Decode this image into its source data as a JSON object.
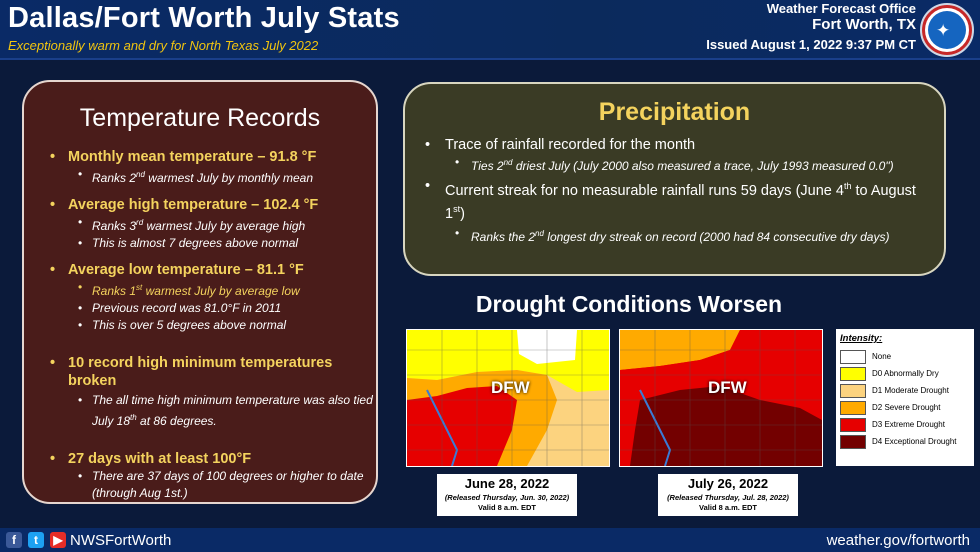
{
  "header": {
    "title": "Dallas/Fort Worth July Stats",
    "subtitle": "Exceptionally warm and dry for North Texas July 2022",
    "office_line1": "Weather Forecast Office",
    "office_line2": "Fort Worth, TX",
    "issued": "Issued August 1, 2022 9:37 PM CT",
    "logo_icon": "noaa-nws-logo-icon"
  },
  "temperature": {
    "heading": "Temperature Records",
    "mean_head": "Monthly mean temperature – 91.8 °F",
    "mean_sub1": "Ranks 2nd warmest July by monthly mean",
    "high_head": "Average high temperature – 102.4 °F",
    "high_sub1": "Ranks 3rd warmest July by average high",
    "high_sub2": "This is almost 7 degrees above normal",
    "low_head": "Average low temperature – 81.1 °F",
    "low_sub1": "Ranks 1st warmest July by average low",
    "low_sub2": "Previous record was 81.0°F in 2011",
    "low_sub3": "This is over 5 degrees above normal",
    "records_head": "10 record high minimum temperatures broken",
    "records_sub1": "The all time high minimum temperature was also tied July 18th at 86 degrees.",
    "days_head": "27 days with at least 100°F",
    "days_sub1": "There are 37 days of 100 degrees or higher to date (through Aug 1st.)"
  },
  "precipitation": {
    "heading": "Precipitation",
    "item1": "Trace of rainfall recorded for the month",
    "item1_sub": "Ties 2nd driest July (July 2000 also measured a trace, July 1993 measured 0.0\")",
    "item2": "Current streak for no measurable rainfall runs 59 days (June 4th to August 1st)",
    "item2_sub": "Ranks the 2nd longest dry streak on record (2000 had 84 consecutive dry days)"
  },
  "drought": {
    "heading": "Drought Conditions Worsen",
    "map_label": "DFW",
    "map1_date": "June 28, 2022",
    "map1_released": "(Released Thursday, Jun. 30, 2022)",
    "map1_valid": "Valid 8 a.m. EDT",
    "map2_date": "July 26, 2022",
    "map2_released": "(Released Thursday, Jul. 28, 2022)",
    "map2_valid": "Valid 8 a.m. EDT",
    "legend_title": "Intensity:",
    "legend": [
      {
        "label": "None",
        "color": "#ffffff"
      },
      {
        "label": "D0 Abnormally Dry",
        "color": "#ffff00"
      },
      {
        "label": "D1 Moderate Drought",
        "color": "#fcd37f"
      },
      {
        "label": "D2 Severe Drought",
        "color": "#ffaa00"
      },
      {
        "label": "D3 Extreme Drought",
        "color": "#e60000"
      },
      {
        "label": "D4 Exceptional Drought",
        "color": "#730000"
      }
    ]
  },
  "footer": {
    "handle": "NWSFortWorth",
    "website": "weather.gov/fortworth",
    "icons": [
      "facebook-icon",
      "twitter-icon",
      "youtube-icon"
    ]
  }
}
